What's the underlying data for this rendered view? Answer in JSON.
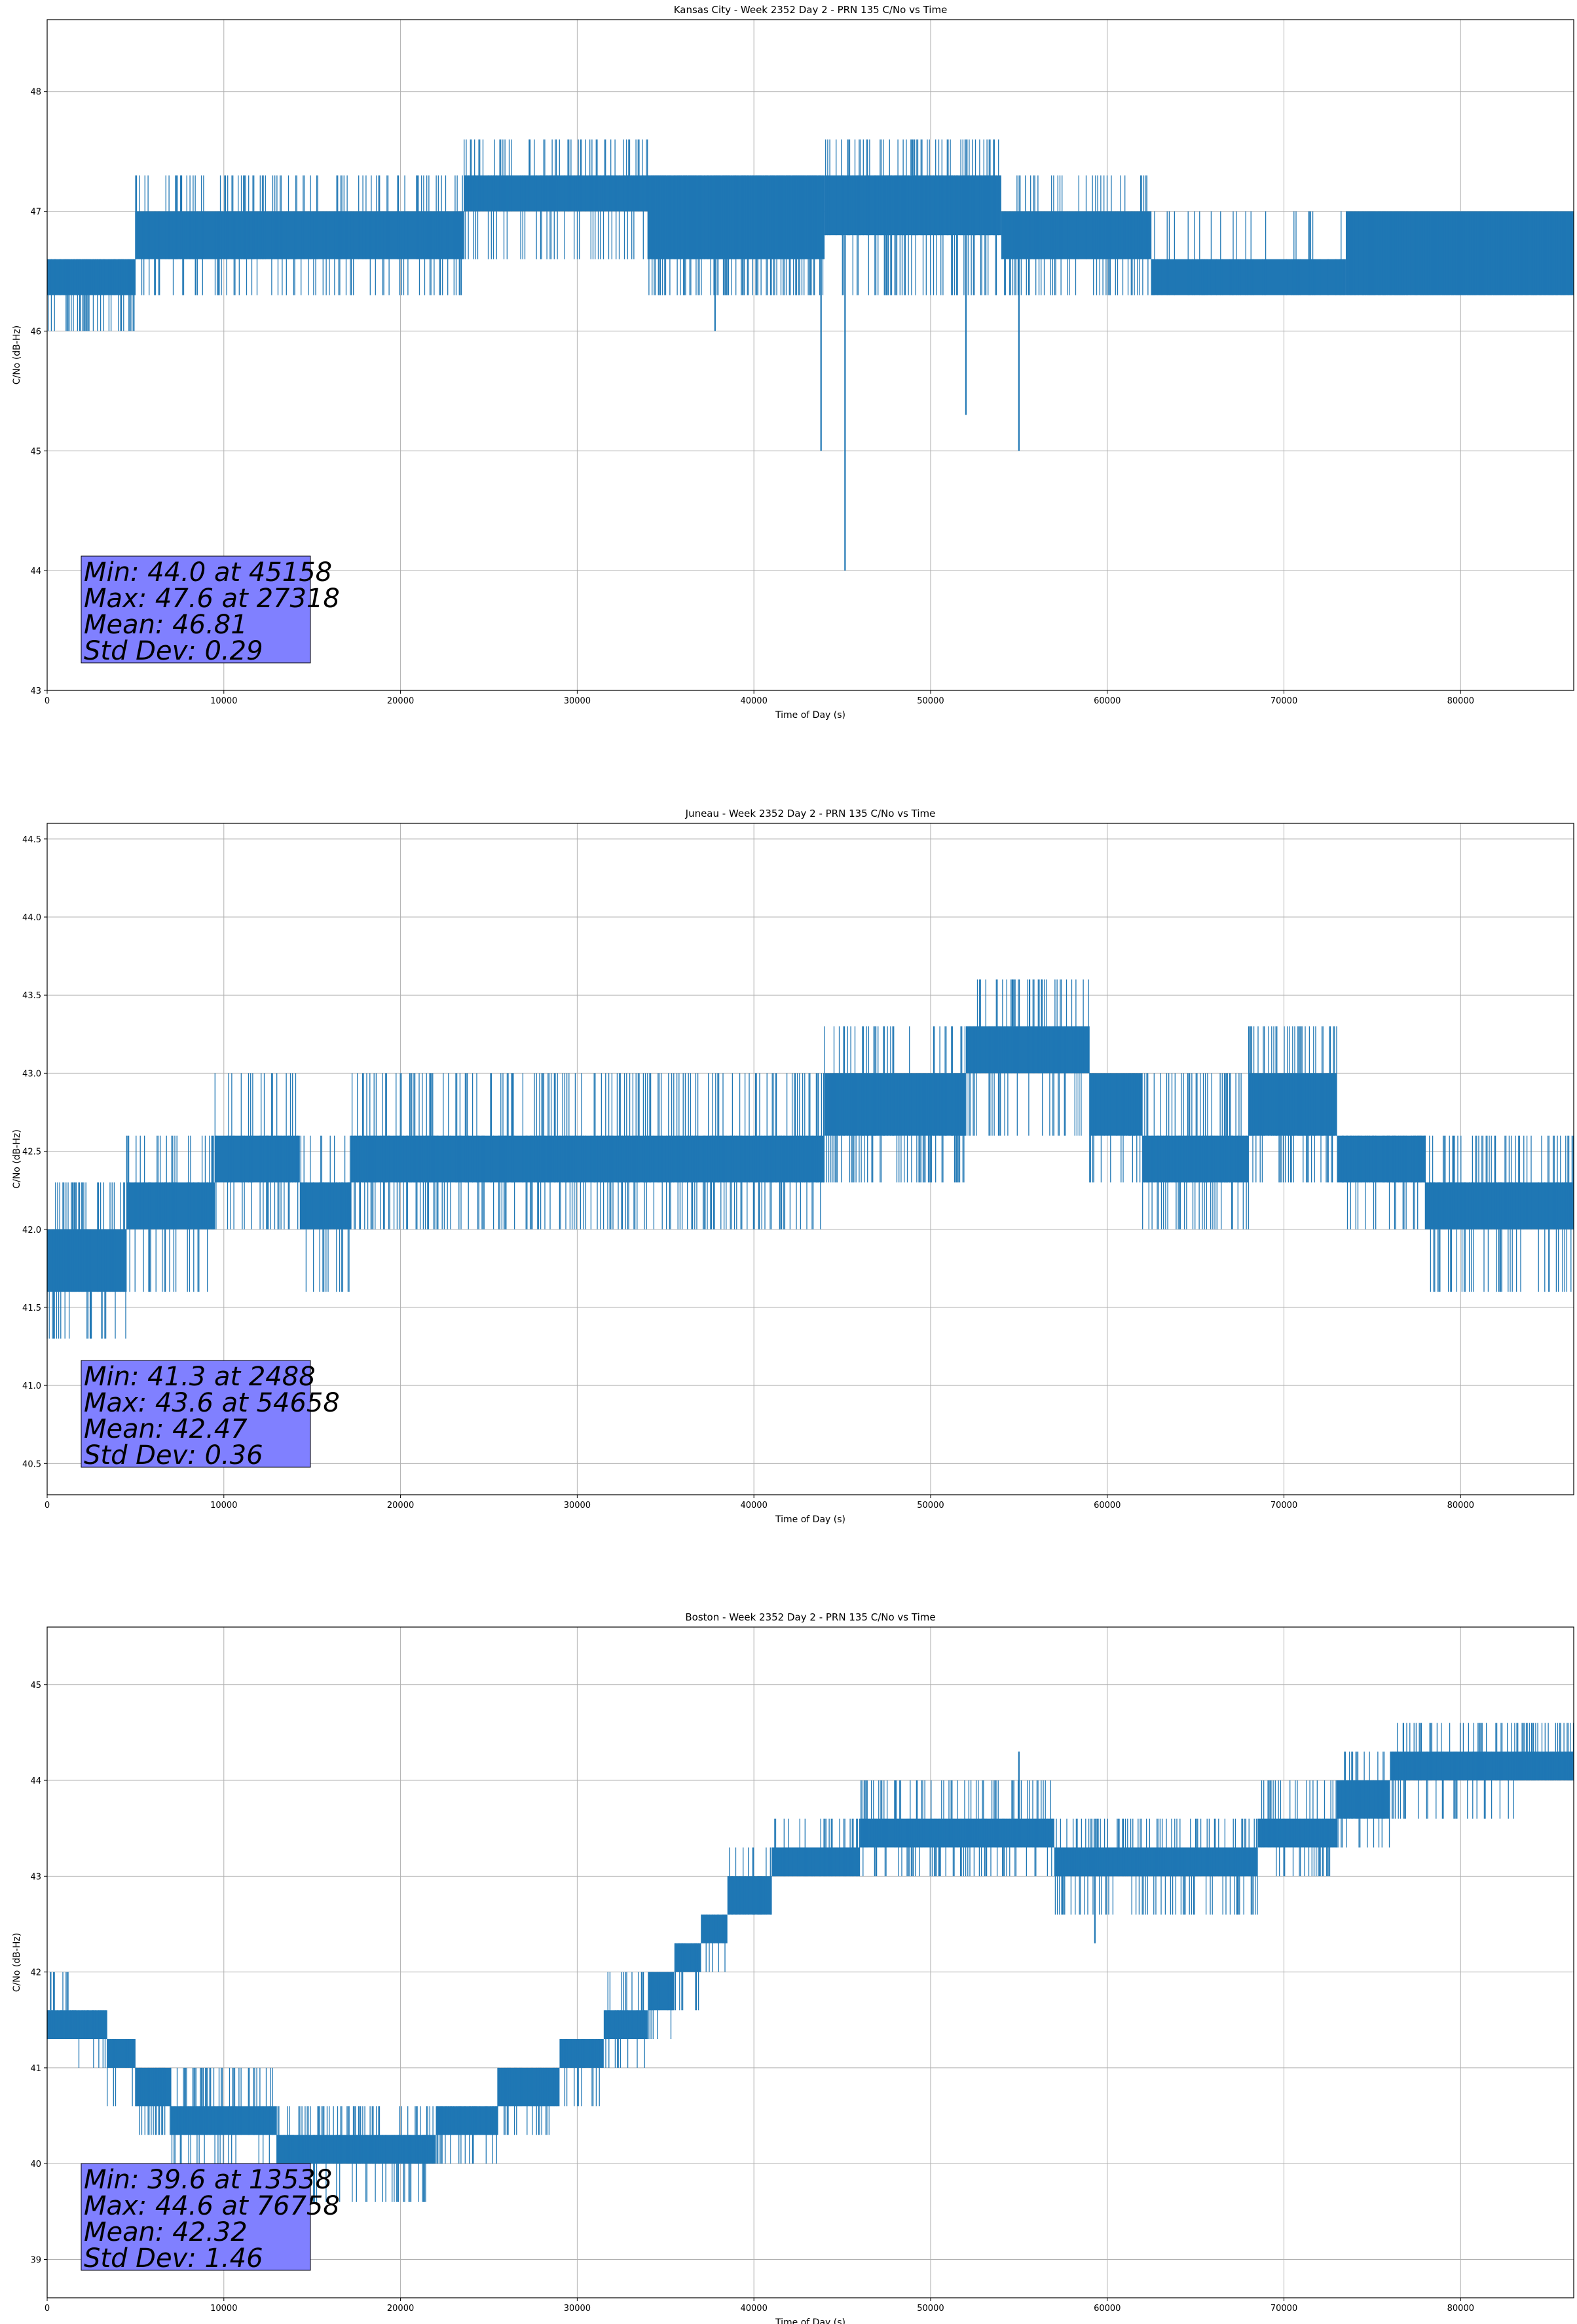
{
  "figure": {
    "xlabel": "Time of Day (s)",
    "ylabel": "C/No (dB-Hz)"
  },
  "colors": {
    "series": "#1f77b4",
    "stats_box": "#8080ff",
    "grid": "#b0b0b0"
  },
  "chart_data": [
    {
      "type": "line",
      "title": "Kansas City - Week 2352 Day 2 - PRN 135 C/No vs Time",
      "xlabel": "Time of Day (s)",
      "ylabel": "C/No (dB-Hz)",
      "xlim": [
        0,
        86400
      ],
      "ylim": [
        43,
        48.6
      ],
      "xticks": [
        0,
        10000,
        20000,
        30000,
        40000,
        50000,
        60000,
        70000,
        80000
      ],
      "yticks": [
        43,
        44,
        45,
        46,
        47,
        48
      ],
      "grid": true,
      "stats": [
        "Min: 44.0 at 45158",
        "Max: 47.6 at 27318",
        "Mean: 46.81",
        "Std Dev: 0.29"
      ],
      "series": [
        {
          "name": "C/No",
          "segments": [
            {
              "x": [
                0,
                5000
              ],
              "low": 46.3,
              "high": 46.6,
              "noise": 0.6,
              "spikes_lo": [
                46.0
              ],
              "spikes_hi": [
                46.6
              ]
            },
            {
              "x": [
                5000,
                23600
              ],
              "low": 46.6,
              "high": 47.0,
              "noise": 0.5,
              "spikes_lo": [
                46.3
              ],
              "spikes_hi": [
                47.3
              ]
            },
            {
              "x": [
                23600,
                34000
              ],
              "low": 47.0,
              "high": 47.3,
              "noise": 0.5,
              "spikes_lo": [
                46.6
              ],
              "spikes_hi": [
                47.6
              ]
            },
            {
              "x": [
                34000,
                44000
              ],
              "low": 46.6,
              "high": 47.3,
              "noise": 0.8,
              "spikes_lo": [
                46.3
              ],
              "spikes_hi": [
                47.3
              ]
            },
            {
              "x": [
                44000,
                54000
              ],
              "low": 46.8,
              "high": 47.3,
              "noise": 0.6,
              "spikes_lo": [
                46.3
              ],
              "spikes_hi": [
                47.6
              ]
            },
            {
              "x": [
                54000,
                62500
              ],
              "low": 46.6,
              "high": 47.0,
              "noise": 0.5,
              "spikes_lo": [
                46.3
              ],
              "spikes_hi": [
                47.3
              ]
            },
            {
              "x": [
                62500,
                73500
              ],
              "low": 46.3,
              "high": 46.6,
              "noise": 0.3,
              "spikes_lo": [
                46.3
              ],
              "spikes_hi": [
                47.0
              ]
            },
            {
              "x": [
                73500,
                86400
              ],
              "low": 46.3,
              "high": 47.0,
              "noise": 0.8,
              "spikes_lo": [
                46.3
              ],
              "spikes_hi": [
                47.0
              ]
            }
          ],
          "dips": [
            {
              "x": 37800,
              "y": 46.0
            },
            {
              "x": 43800,
              "y": 45.0
            },
            {
              "x": 45158,
              "y": 44.0
            },
            {
              "x": 52000,
              "y": 45.3
            },
            {
              "x": 55000,
              "y": 45.0
            },
            {
              "x": 8400,
              "y": 46.3
            }
          ],
          "peaks": [
            {
              "x": 27318,
              "y": 47.6
            },
            {
              "x": 48900,
              "y": 47.6
            },
            {
              "x": 7600,
              "y": 47.3
            }
          ]
        }
      ]
    },
    {
      "type": "line",
      "title": "Juneau - Week 2352 Day 2 - PRN 135 C/No vs Time",
      "xlabel": "Time of Day (s)",
      "ylabel": "C/No (dB-Hz)",
      "xlim": [
        0,
        86400
      ],
      "ylim": [
        40.3,
        44.6
      ],
      "xticks": [
        0,
        10000,
        20000,
        30000,
        40000,
        50000,
        60000,
        70000,
        80000
      ],
      "yticks": [
        40.5,
        41.0,
        41.5,
        42.0,
        42.5,
        43.0,
        43.5,
        44.0,
        44.5
      ],
      "grid": true,
      "stats": [
        "Min: 41.3 at 2488",
        "Max: 43.6 at 54658",
        "Mean: 42.47",
        "Std Dev: 0.36"
      ],
      "series": [
        {
          "name": "C/No",
          "segments": [
            {
              "x": [
                0,
                4500
              ],
              "low": 41.6,
              "high": 42.0,
              "noise": 0.6,
              "spikes_lo": [
                41.3
              ],
              "spikes_hi": [
                42.3
              ]
            },
            {
              "x": [
                4500,
                9500
              ],
              "low": 42.0,
              "high": 42.3,
              "noise": 0.5,
              "spikes_lo": [
                41.6
              ],
              "spikes_hi": [
                42.6
              ]
            },
            {
              "x": [
                9500,
                14300
              ],
              "low": 42.3,
              "high": 42.6,
              "noise": 0.5,
              "spikes_lo": [
                42.0
              ],
              "spikes_hi": [
                43.0
              ]
            },
            {
              "x": [
                14300,
                17200
              ],
              "low": 42.0,
              "high": 42.3,
              "noise": 0.5,
              "spikes_lo": [
                41.6
              ],
              "spikes_hi": [
                42.6
              ]
            },
            {
              "x": [
                17200,
                44000
              ],
              "low": 42.3,
              "high": 42.6,
              "noise": 0.6,
              "spikes_lo": [
                42.0
              ],
              "spikes_hi": [
                43.0
              ]
            },
            {
              "x": [
                44000,
                52000
              ],
              "low": 42.6,
              "high": 43.0,
              "noise": 0.6,
              "spikes_lo": [
                42.3
              ],
              "spikes_hi": [
                43.3
              ]
            },
            {
              "x": [
                52000,
                59000
              ],
              "low": 43.0,
              "high": 43.3,
              "noise": 0.5,
              "spikes_lo": [
                42.6
              ],
              "spikes_hi": [
                43.6
              ]
            },
            {
              "x": [
                59000,
                62000
              ],
              "low": 42.6,
              "high": 43.0,
              "noise": 0.5,
              "spikes_lo": [
                42.3
              ],
              "spikes_hi": [
                43.0
              ]
            },
            {
              "x": [
                62000,
                68000
              ],
              "low": 42.3,
              "high": 42.6,
              "noise": 0.5,
              "spikes_lo": [
                42.0
              ],
              "spikes_hi": [
                43.0
              ]
            },
            {
              "x": [
                68000,
                73000
              ],
              "low": 42.6,
              "high": 43.0,
              "noise": 0.6,
              "spikes_lo": [
                42.3
              ],
              "spikes_hi": [
                43.3
              ]
            },
            {
              "x": [
                73000,
                78000
              ],
              "low": 42.3,
              "high": 42.6,
              "noise": 0.6,
              "spikes_lo": [
                42.0
              ],
              "spikes_hi": [
                42.6
              ]
            },
            {
              "x": [
                78000,
                86400
              ],
              "low": 42.0,
              "high": 42.3,
              "noise": 0.6,
              "spikes_lo": [
                41.6
              ],
              "spikes_hi": [
                42.6
              ]
            }
          ],
          "dips": [
            {
              "x": 2488,
              "y": 41.3
            },
            {
              "x": 3100,
              "y": 41.3
            },
            {
              "x": 85000,
              "y": 41.6
            },
            {
              "x": 40300,
              "y": 42.0
            }
          ],
          "peaks": [
            {
              "x": 54658,
              "y": 43.6
            },
            {
              "x": 55600,
              "y": 43.6
            },
            {
              "x": 56300,
              "y": 43.6
            }
          ]
        }
      ]
    },
    {
      "type": "line",
      "title": "Boston - Week 2352 Day 2 - PRN 135 C/No vs Time",
      "xlabel": "Time of Day (s)",
      "ylabel": "C/No (dB-Hz)",
      "xlim": [
        0,
        86400
      ],
      "ylim": [
        38.6,
        45.6
      ],
      "xticks": [
        0,
        10000,
        20000,
        30000,
        40000,
        50000,
        60000,
        70000,
        80000
      ],
      "yticks": [
        39,
        40,
        41,
        42,
        43,
        44,
        45
      ],
      "grid": true,
      "stats": [
        "Min: 39.6 at 13538",
        "Max: 44.6 at 76758",
        "Mean: 42.32",
        "Std Dev: 1.46"
      ],
      "series": [
        {
          "name": "C/No",
          "segments": [
            {
              "x": [
                0,
                1500
              ],
              "low": 41.3,
              "high": 41.6,
              "noise": 0.5,
              "spikes_lo": [
                41.3
              ],
              "spikes_hi": [
                42.0
              ]
            },
            {
              "x": [
                1500,
                3400
              ],
              "low": 41.3,
              "high": 41.6,
              "noise": 0.5,
              "spikes_lo": [
                41.0
              ],
              "spikes_hi": [
                41.6
              ]
            },
            {
              "x": [
                3400,
                5000
              ],
              "low": 41.0,
              "high": 41.3,
              "noise": 0.5,
              "spikes_lo": [
                40.6
              ],
              "spikes_hi": [
                41.3
              ]
            },
            {
              "x": [
                5000,
                7000
              ],
              "low": 40.6,
              "high": 41.0,
              "noise": 0.5,
              "spikes_lo": [
                40.3
              ],
              "spikes_hi": [
                41.0
              ]
            },
            {
              "x": [
                7000,
                13000
              ],
              "low": 40.3,
              "high": 40.6,
              "noise": 0.5,
              "spikes_lo": [
                40.0
              ],
              "spikes_hi": [
                41.0
              ]
            },
            {
              "x": [
                13000,
                22000
              ],
              "low": 40.0,
              "high": 40.3,
              "noise": 0.5,
              "spikes_lo": [
                39.6
              ],
              "spikes_hi": [
                40.6
              ]
            },
            {
              "x": [
                22000,
                25500
              ],
              "low": 40.3,
              "high": 40.6,
              "noise": 0.5,
              "spikes_lo": [
                40.0
              ],
              "spikes_hi": [
                40.6
              ]
            },
            {
              "x": [
                25500,
                29000
              ],
              "low": 40.6,
              "high": 41.0,
              "noise": 0.5,
              "spikes_lo": [
                40.3
              ],
              "spikes_hi": [
                41.0
              ]
            },
            {
              "x": [
                29000,
                31500
              ],
              "low": 41.0,
              "high": 41.3,
              "noise": 0.5,
              "spikes_lo": [
                40.6
              ],
              "spikes_hi": [
                41.3
              ]
            },
            {
              "x": [
                31500,
                34000
              ],
              "low": 41.3,
              "high": 41.6,
              "noise": 0.5,
              "spikes_lo": [
                41.0
              ],
              "spikes_hi": [
                42.0
              ]
            },
            {
              "x": [
                34000,
                35500
              ],
              "low": 41.6,
              "high": 42.0,
              "noise": 0.5,
              "spikes_lo": [
                41.3
              ],
              "spikes_hi": [
                42.0
              ]
            },
            {
              "x": [
                35500,
                37000
              ],
              "low": 42.0,
              "high": 42.3,
              "noise": 0.5,
              "spikes_lo": [
                41.6
              ],
              "spikes_hi": [
                42.3
              ]
            },
            {
              "x": [
                37000,
                38500
              ],
              "low": 42.3,
              "high": 42.6,
              "noise": 0.5,
              "spikes_lo": [
                42.0
              ],
              "spikes_hi": [
                42.6
              ]
            },
            {
              "x": [
                38500,
                41000
              ],
              "low": 42.6,
              "high": 43.0,
              "noise": 0.5,
              "spikes_lo": [
                42.6
              ],
              "spikes_hi": [
                43.3
              ]
            },
            {
              "x": [
                41000,
                46000
              ],
              "low": 43.0,
              "high": 43.3,
              "noise": 0.5,
              "spikes_lo": [
                43.0
              ],
              "spikes_hi": [
                43.6
              ]
            },
            {
              "x": [
                46000,
                57000
              ],
              "low": 43.3,
              "high": 43.6,
              "noise": 0.6,
              "spikes_lo": [
                43.0
              ],
              "spikes_hi": [
                44.0
              ]
            },
            {
              "x": [
                57000,
                65000
              ],
              "low": 43.0,
              "high": 43.3,
              "noise": 0.6,
              "spikes_lo": [
                42.6
              ],
              "spikes_hi": [
                43.6
              ]
            },
            {
              "x": [
                65000,
                68500
              ],
              "low": 43.0,
              "high": 43.3,
              "noise": 0.5,
              "spikes_lo": [
                42.6
              ],
              "spikes_hi": [
                43.6
              ]
            },
            {
              "x": [
                68500,
                73000
              ],
              "low": 43.3,
              "high": 43.6,
              "noise": 0.5,
              "spikes_lo": [
                43.0
              ],
              "spikes_hi": [
                44.0
              ]
            },
            {
              "x": [
                73000,
                76000
              ],
              "low": 43.6,
              "high": 44.0,
              "noise": 0.5,
              "spikes_lo": [
                43.3
              ],
              "spikes_hi": [
                44.3
              ]
            },
            {
              "x": [
                76000,
                83000
              ],
              "low": 44.0,
              "high": 44.3,
              "noise": 0.5,
              "spikes_lo": [
                43.6
              ],
              "spikes_hi": [
                44.6
              ]
            },
            {
              "x": [
                83000,
                86400
              ],
              "low": 44.0,
              "high": 44.3,
              "noise": 0.7,
              "spikes_lo": [
                44.0
              ],
              "spikes_hi": [
                44.6
              ]
            }
          ],
          "dips": [
            {
              "x": 13538,
              "y": 39.6
            },
            {
              "x": 19800,
              "y": 39.6
            },
            {
              "x": 59300,
              "y": 42.3
            }
          ],
          "peaks": [
            {
              "x": 76758,
              "y": 44.6
            },
            {
              "x": 55000,
              "y": 44.3
            },
            {
              "x": 200,
              "y": 42.0
            }
          ]
        }
      ]
    }
  ]
}
